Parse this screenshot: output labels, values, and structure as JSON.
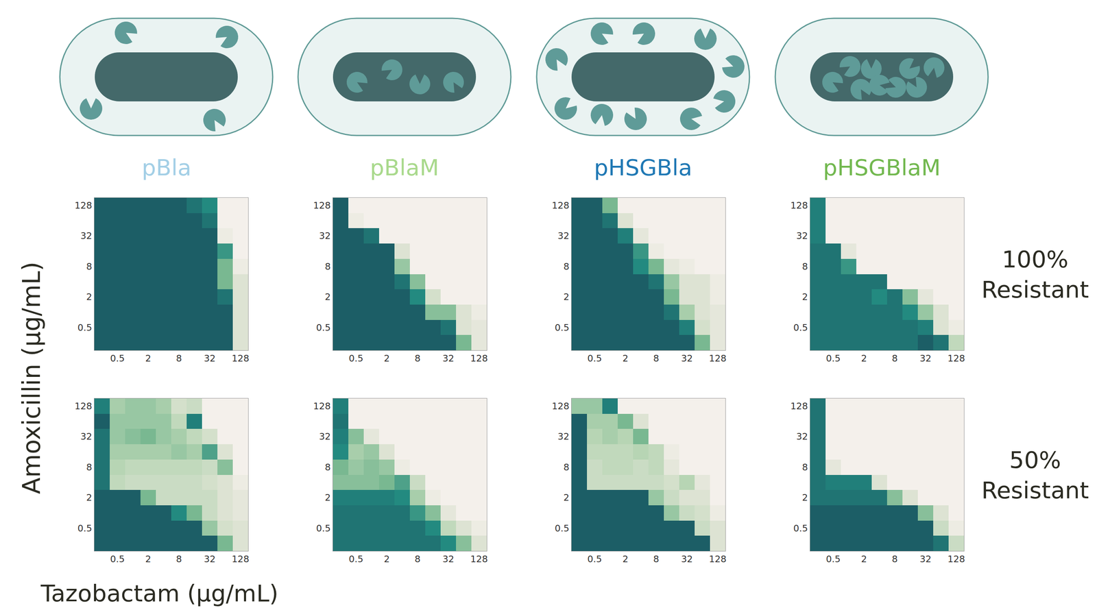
{
  "chart_data": {
    "type": "heatmap",
    "x_label": "Tazobactam (μg/mL)",
    "y_label": "Amoxicillin (μg/mL)",
    "x": [
      0,
      0.5,
      1,
      2,
      4,
      8,
      16,
      32,
      64,
      128
    ],
    "y": [
      0,
      0.5,
      1,
      2,
      4,
      8,
      16,
      32,
      64,
      128
    ],
    "xticks": [
      0.5,
      2,
      8,
      32,
      128
    ],
    "yticks": [
      0.5,
      2,
      8,
      32,
      128
    ],
    "zlim": [
      0,
      1
    ],
    "colorscale": [
      "#fcf4f3",
      "#dde3d3",
      "#b7d5b4",
      "#79b891",
      "#238a80",
      "#1c5e66"
    ],
    "strains": [
      {
        "title": "pBla",
        "color": "#a3cfe6",
        "marker": "periplasm"
      },
      {
        "title": "pBlaM",
        "color": "#a9d98c",
        "marker": "cytoplasm"
      },
      {
        "title": "pHSGBla",
        "color": "#1f78b4",
        "marker": "periplasm"
      },
      {
        "title": "pHSGBlaM",
        "color": "#72b84f",
        "marker": "cytoplasm"
      }
    ],
    "rows": [
      {
        "label": "100% Resistant",
        "panels": [
          [
            [
              1,
              1,
              1,
              1,
              1,
              1,
              1,
              1,
              1,
              0.2
            ],
            [
              1,
              1,
              1,
              1,
              1,
              1,
              1,
              1,
              1,
              0.2
            ],
            [
              1,
              1,
              1,
              1,
              1,
              1,
              1,
              1,
              1,
              0.2
            ],
            [
              1,
              1,
              1,
              1,
              1,
              1,
              1,
              1,
              0.9,
              0.2
            ],
            [
              1,
              1,
              1,
              1,
              1,
              1,
              1,
              1,
              0.6,
              0.2
            ],
            [
              1,
              1,
              1,
              1,
              1,
              1,
              1,
              1,
              0.6,
              0.1
            ],
            [
              1,
              1,
              1,
              1,
              1,
              1,
              1,
              1,
              0.75,
              0.05
            ],
            [
              1,
              1,
              1,
              1,
              1,
              1,
              1,
              1,
              0.1,
              0.05
            ],
            [
              1,
              1,
              1,
              1,
              1,
              1,
              1,
              0.9,
              0.05,
              0.05
            ],
            [
              1,
              1,
              1,
              1,
              1,
              1,
              0.9,
              0.8,
              0.05,
              0.05
            ]
          ],
          [
            [
              1,
              1,
              1,
              1,
              1,
              1,
              1,
              1,
              0.6,
              0.15
            ],
            [
              1,
              1,
              1,
              1,
              1,
              1,
              1,
              0.9,
              0.2,
              0.15
            ],
            [
              1,
              1,
              1,
              1,
              1,
              1,
              0.55,
              0.55,
              0.2,
              0.1
            ],
            [
              1,
              1,
              1,
              1,
              1,
              0.8,
              0.25,
              0.05,
              0.05,
              0.05
            ],
            [
              1,
              1,
              1,
              1,
              0.9,
              0.55,
              0.05,
              0.05,
              0.05,
              0.05
            ],
            [
              1,
              1,
              1,
              1,
              0.5,
              0.05,
              0.05,
              0.05,
              0.05,
              0.05
            ],
            [
              1,
              1,
              1,
              1,
              0.2,
              0.05,
              0.05,
              0.05,
              0.05,
              0.05
            ],
            [
              1,
              1,
              0.9,
              0.05,
              0.05,
              0.05,
              0.05,
              0.05,
              0.05,
              0.05
            ],
            [
              1,
              0.1,
              0.05,
              0.05,
              0.05,
              0.05,
              0.05,
              0.05,
              0.05,
              0.05
            ],
            [
              1,
              0.05,
              0.05,
              0.05,
              0.05,
              0.05,
              0.05,
              0.05,
              0.05,
              0.05
            ]
          ],
          [
            [
              1,
              1,
              1,
              1,
              1,
              1,
              1,
              1,
              0.6,
              0.15
            ],
            [
              1,
              1,
              1,
              1,
              1,
              1,
              1,
              0.85,
              0.25,
              0.15
            ],
            [
              1,
              1,
              1,
              1,
              1,
              1,
              0.9,
              0.45,
              0.2,
              0.15
            ],
            [
              1,
              1,
              1,
              1,
              1,
              1,
              0.6,
              0.2,
              0.2,
              0.1
            ],
            [
              1,
              1,
              1,
              1,
              1,
              0.9,
              0.5,
              0.2,
              0.2,
              0.1
            ],
            [
              1,
              1,
              1,
              1,
              0.8,
              0.6,
              0.15,
              0.1,
              0.05,
              0.05
            ],
            [
              1,
              1,
              1,
              1,
              0.75,
              0.1,
              0.05,
              0.05,
              0.05,
              0.05
            ],
            [
              1,
              1,
              1,
              0.85,
              0.15,
              0.05,
              0.05,
              0.05,
              0.05,
              0.05
            ],
            [
              1,
              1,
              0.9,
              0.2,
              0.05,
              0.05,
              0.05,
              0.05,
              0.05,
              0.05
            ],
            [
              1,
              1,
              0.6,
              0.05,
              0.05,
              0.05,
              0.05,
              0.05,
              0.05,
              0.05
            ]
          ],
          [
            [
              0.9,
              0.9,
              0.9,
              0.9,
              0.9,
              0.9,
              0.9,
              1,
              0.9,
              0.35
            ],
            [
              0.9,
              0.9,
              0.9,
              0.9,
              0.9,
              0.9,
              0.9,
              0.85,
              0.2,
              0.1
            ],
            [
              0.9,
              0.9,
              0.9,
              0.9,
              0.9,
              0.9,
              0.8,
              0.5,
              0.2,
              0.05
            ],
            [
              0.9,
              0.9,
              0.9,
              0.9,
              0.8,
              0.9,
              0.55,
              0.15,
              0.05,
              0.05
            ],
            [
              0.9,
              0.9,
              0.9,
              0.9,
              0.9,
              0.05,
              0.05,
              0.05,
              0.05,
              0.05
            ],
            [
              0.9,
              0.9,
              0.75,
              0.05,
              0.05,
              0.05,
              0.05,
              0.05,
              0.05,
              0.05
            ],
            [
              0.9,
              0.9,
              0.15,
              0.05,
              0.05,
              0.05,
              0.05,
              0.05,
              0.05,
              0.05
            ],
            [
              0.85,
              0.05,
              0.05,
              0.05,
              0.05,
              0.05,
              0.05,
              0.05,
              0.05,
              0.05
            ],
            [
              0.85,
              0.05,
              0.05,
              0.05,
              0.05,
              0.05,
              0.05,
              0.05,
              0.05,
              0.05
            ],
            [
              0.85,
              0.05,
              0.05,
              0.05,
              0.05,
              0.05,
              0.05,
              0.05,
              0.05,
              0.05
            ]
          ]
        ]
      },
      {
        "label": "50% Resistant",
        "panels": [
          [
            [
              1,
              1,
              1,
              1,
              1,
              1,
              1,
              1,
              0.6,
              0.2
            ],
            [
              1,
              1,
              1,
              1,
              1,
              1,
              1,
              0.5,
              0.25,
              0.2
            ],
            [
              1,
              1,
              1,
              1,
              1,
              0.8,
              0.6,
              0.3,
              0.2,
              0.15
            ],
            [
              1,
              1,
              1,
              0.6,
              0.3,
              0.3,
              0.3,
              0.3,
              0.2,
              0.15
            ],
            [
              0.9,
              0.35,
              0.3,
              0.3,
              0.3,
              0.3,
              0.3,
              0.25,
              0.2,
              0.1
            ],
            [
              0.9,
              0.4,
              0.35,
              0.35,
              0.35,
              0.35,
              0.35,
              0.3,
              0.55,
              0.05
            ],
            [
              0.9,
              0.45,
              0.45,
              0.45,
              0.45,
              0.5,
              0.45,
              0.7,
              0.2,
              0.05
            ],
            [
              0.9,
              0.5,
              0.55,
              0.6,
              0.5,
              0.45,
              0.35,
              0.25,
              0.05,
              0.05
            ],
            [
              1,
              0.5,
              0.5,
              0.5,
              0.5,
              0.35,
              0.85,
              0.05,
              0.05,
              0.05
            ],
            [
              0.85,
              0.45,
              0.5,
              0.5,
              0.45,
              0.25,
              0.3,
              0.05,
              0.05,
              0.05
            ]
          ],
          [
            [
              0.9,
              0.9,
              0.9,
              0.9,
              0.9,
              0.9,
              0.9,
              0.8,
              0.55,
              0.2
            ],
            [
              0.9,
              0.9,
              0.9,
              0.9,
              0.9,
              0.9,
              0.8,
              0.35,
              0.2,
              0.1
            ],
            [
              0.9,
              0.9,
              0.9,
              0.9,
              0.9,
              0.75,
              0.55,
              0.15,
              0.05,
              0.05
            ],
            [
              0.85,
              0.85,
              0.85,
              0.85,
              0.8,
              0.45,
              0.1,
              0.05,
              0.05,
              0.05
            ],
            [
              0.55,
              0.55,
              0.55,
              0.6,
              0.7,
              0.3,
              0.05,
              0.05,
              0.05,
              0.05
            ],
            [
              0.6,
              0.5,
              0.55,
              0.5,
              0.1,
              0.05,
              0.05,
              0.05,
              0.05,
              0.05
            ],
            [
              0.8,
              0.45,
              0.5,
              0.2,
              0.05,
              0.05,
              0.05,
              0.05,
              0.05,
              0.05
            ],
            [
              0.85,
              0.55,
              0.15,
              0.05,
              0.05,
              0.05,
              0.05,
              0.05,
              0.05,
              0.05
            ],
            [
              0.9,
              0.05,
              0.05,
              0.05,
              0.05,
              0.05,
              0.05,
              0.05,
              0.05,
              0.05
            ],
            [
              0.85,
              0.05,
              0.05,
              0.05,
              0.05,
              0.05,
              0.05,
              0.05,
              0.05,
              0.05
            ]
          ],
          [
            [
              1,
              1,
              1,
              1,
              1,
              1,
              1,
              1,
              1,
              0.2
            ],
            [
              1,
              1,
              1,
              1,
              1,
              1,
              1,
              1,
              0.3,
              0.2
            ],
            [
              1,
              1,
              1,
              1,
              1,
              1,
              0.5,
              0.3,
              0.25,
              0.1
            ],
            [
              1,
              1,
              1,
              1,
              1,
              0.5,
              0.3,
              0.2,
              0.2,
              0.05
            ],
            [
              1,
              0.3,
              0.3,
              0.3,
              0.3,
              0.3,
              0.25,
              0.4,
              0.15,
              0.05
            ],
            [
              1,
              0.3,
              0.35,
              0.35,
              0.3,
              0.35,
              0.15,
              0.05,
              0.05,
              0.05
            ],
            [
              1,
              0.35,
              0.35,
              0.35,
              0.4,
              0.35,
              0.1,
              0.05,
              0.05,
              0.05
            ],
            [
              1,
              0.4,
              0.45,
              0.4,
              0.6,
              0.05,
              0.05,
              0.05,
              0.05,
              0.05
            ],
            [
              1,
              0.45,
              0.45,
              0.6,
              0.2,
              0.05,
              0.05,
              0.05,
              0.05,
              0.05
            ],
            [
              0.5,
              0.5,
              0.85,
              0.05,
              0.05,
              0.05,
              0.05,
              0.05,
              0.05,
              0.05
            ]
          ],
          [
            [
              1,
              1,
              1,
              1,
              1,
              1,
              1,
              1,
              0.9,
              0.3
            ],
            [
              1,
              1,
              1,
              1,
              1,
              1,
              1,
              1,
              0.3,
              0.1
            ],
            [
              1,
              1,
              1,
              1,
              1,
              1,
              1,
              0.55,
              0.2,
              0.05
            ],
            [
              0.9,
              0.9,
              0.9,
              0.9,
              0.9,
              0.55,
              0.2,
              0.05,
              0.05,
              0.05
            ],
            [
              0.9,
              0.85,
              0.85,
              0.85,
              0.2,
              0.05,
              0.05,
              0.05,
              0.05,
              0.05
            ],
            [
              0.9,
              0.15,
              0.05,
              0.05,
              0.05,
              0.05,
              0.05,
              0.05,
              0.05,
              0.05
            ],
            [
              0.9,
              0.05,
              0.05,
              0.05,
              0.05,
              0.05,
              0.05,
              0.05,
              0.05,
              0.05
            ],
            [
              0.9,
              0.05,
              0.05,
              0.05,
              0.05,
              0.05,
              0.05,
              0.05,
              0.05,
              0.05
            ],
            [
              0.9,
              0.05,
              0.05,
              0.05,
              0.05,
              0.05,
              0.05,
              0.05,
              0.05,
              0.05
            ],
            [
              0.9,
              0.05,
              0.05,
              0.05,
              0.05,
              0.05,
              0.05,
              0.05,
              0.05,
              0.05
            ]
          ]
        ]
      }
    ]
  }
}
